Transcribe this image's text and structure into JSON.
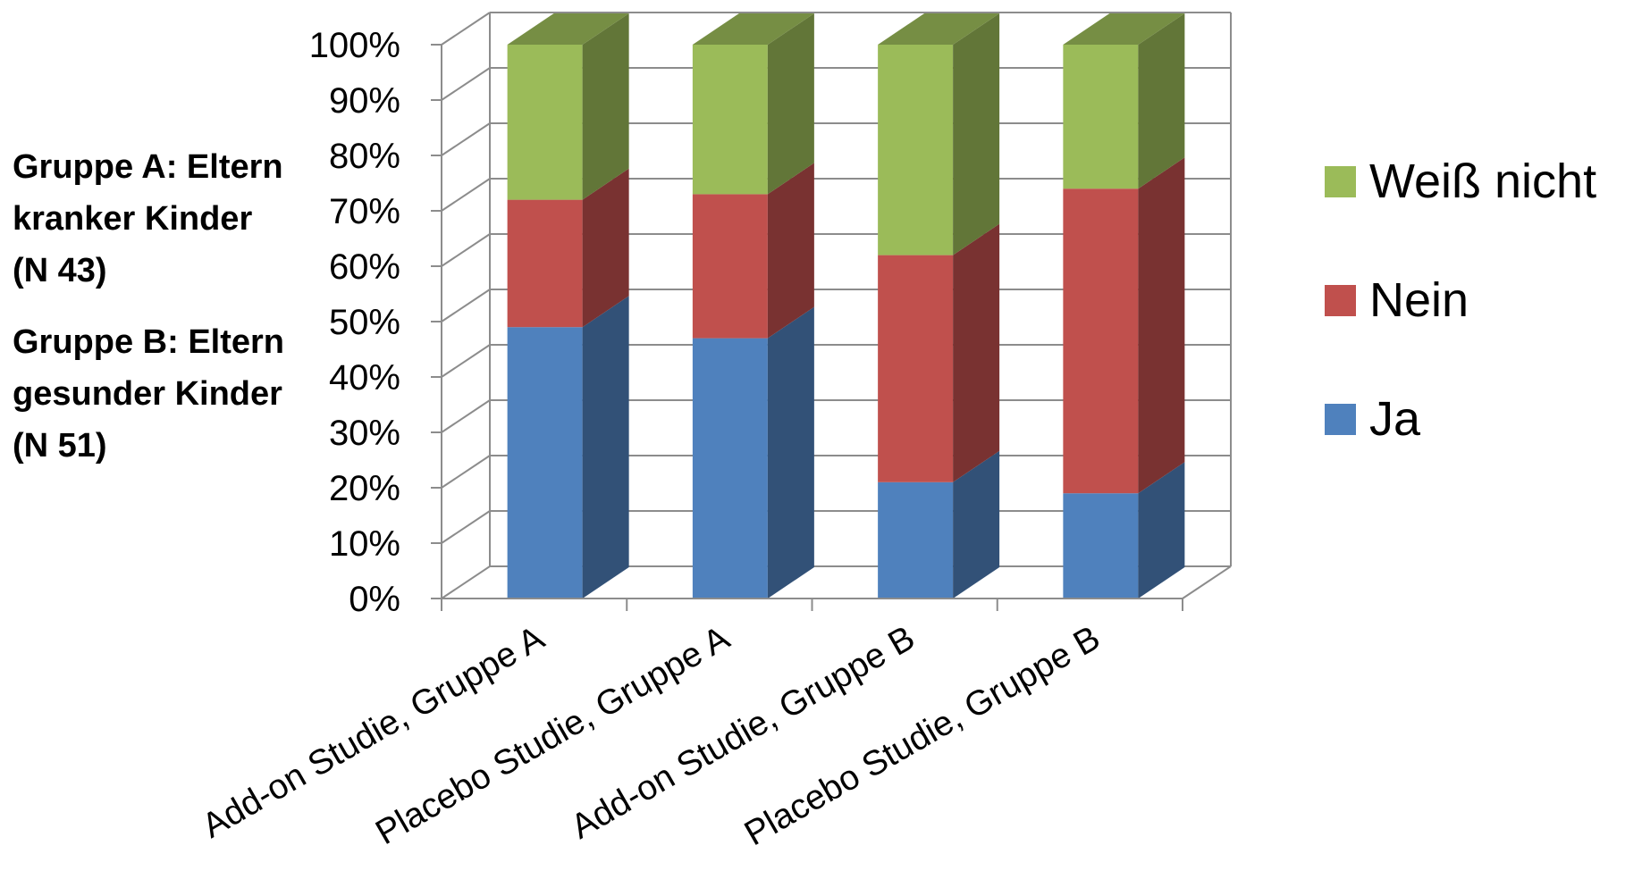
{
  "chart_data": {
    "type": "bar",
    "stacked": true,
    "percent_stacked": true,
    "three_d": true,
    "categories": [
      "Add-on Studie, Gruppe A",
      "Placebo Studie, Gruppe A",
      "Add-on Studie, Gruppe B",
      "Placebo Studie, Gruppe B"
    ],
    "series": [
      {
        "name": "Ja",
        "values": [
          49,
          47,
          21,
          19
        ],
        "color": "#4F81BD"
      },
      {
        "name": "Nein",
        "values": [
          23,
          26,
          41,
          55
        ],
        "color": "#C0504D"
      },
      {
        "name": "Weiß nicht",
        "values": [
          28,
          27,
          38,
          26
        ],
        "color": "#9BBB59"
      }
    ],
    "yticks": [
      "0%",
      "10%",
      "20%",
      "30%",
      "40%",
      "50%",
      "60%",
      "70%",
      "80%",
      "90%",
      "100%"
    ],
    "ylim": [
      0,
      100
    ],
    "grid": true,
    "legend_position": "right",
    "legend_order": [
      "Weiß nicht",
      "Nein",
      "Ja"
    ]
  },
  "annotations": [
    {
      "text": "Gruppe A: Eltern\nkranker Kinder\n(N 43)"
    },
    {
      "text": "Gruppe B: Eltern\ngesunder Kinder\n(N 51)"
    }
  ]
}
